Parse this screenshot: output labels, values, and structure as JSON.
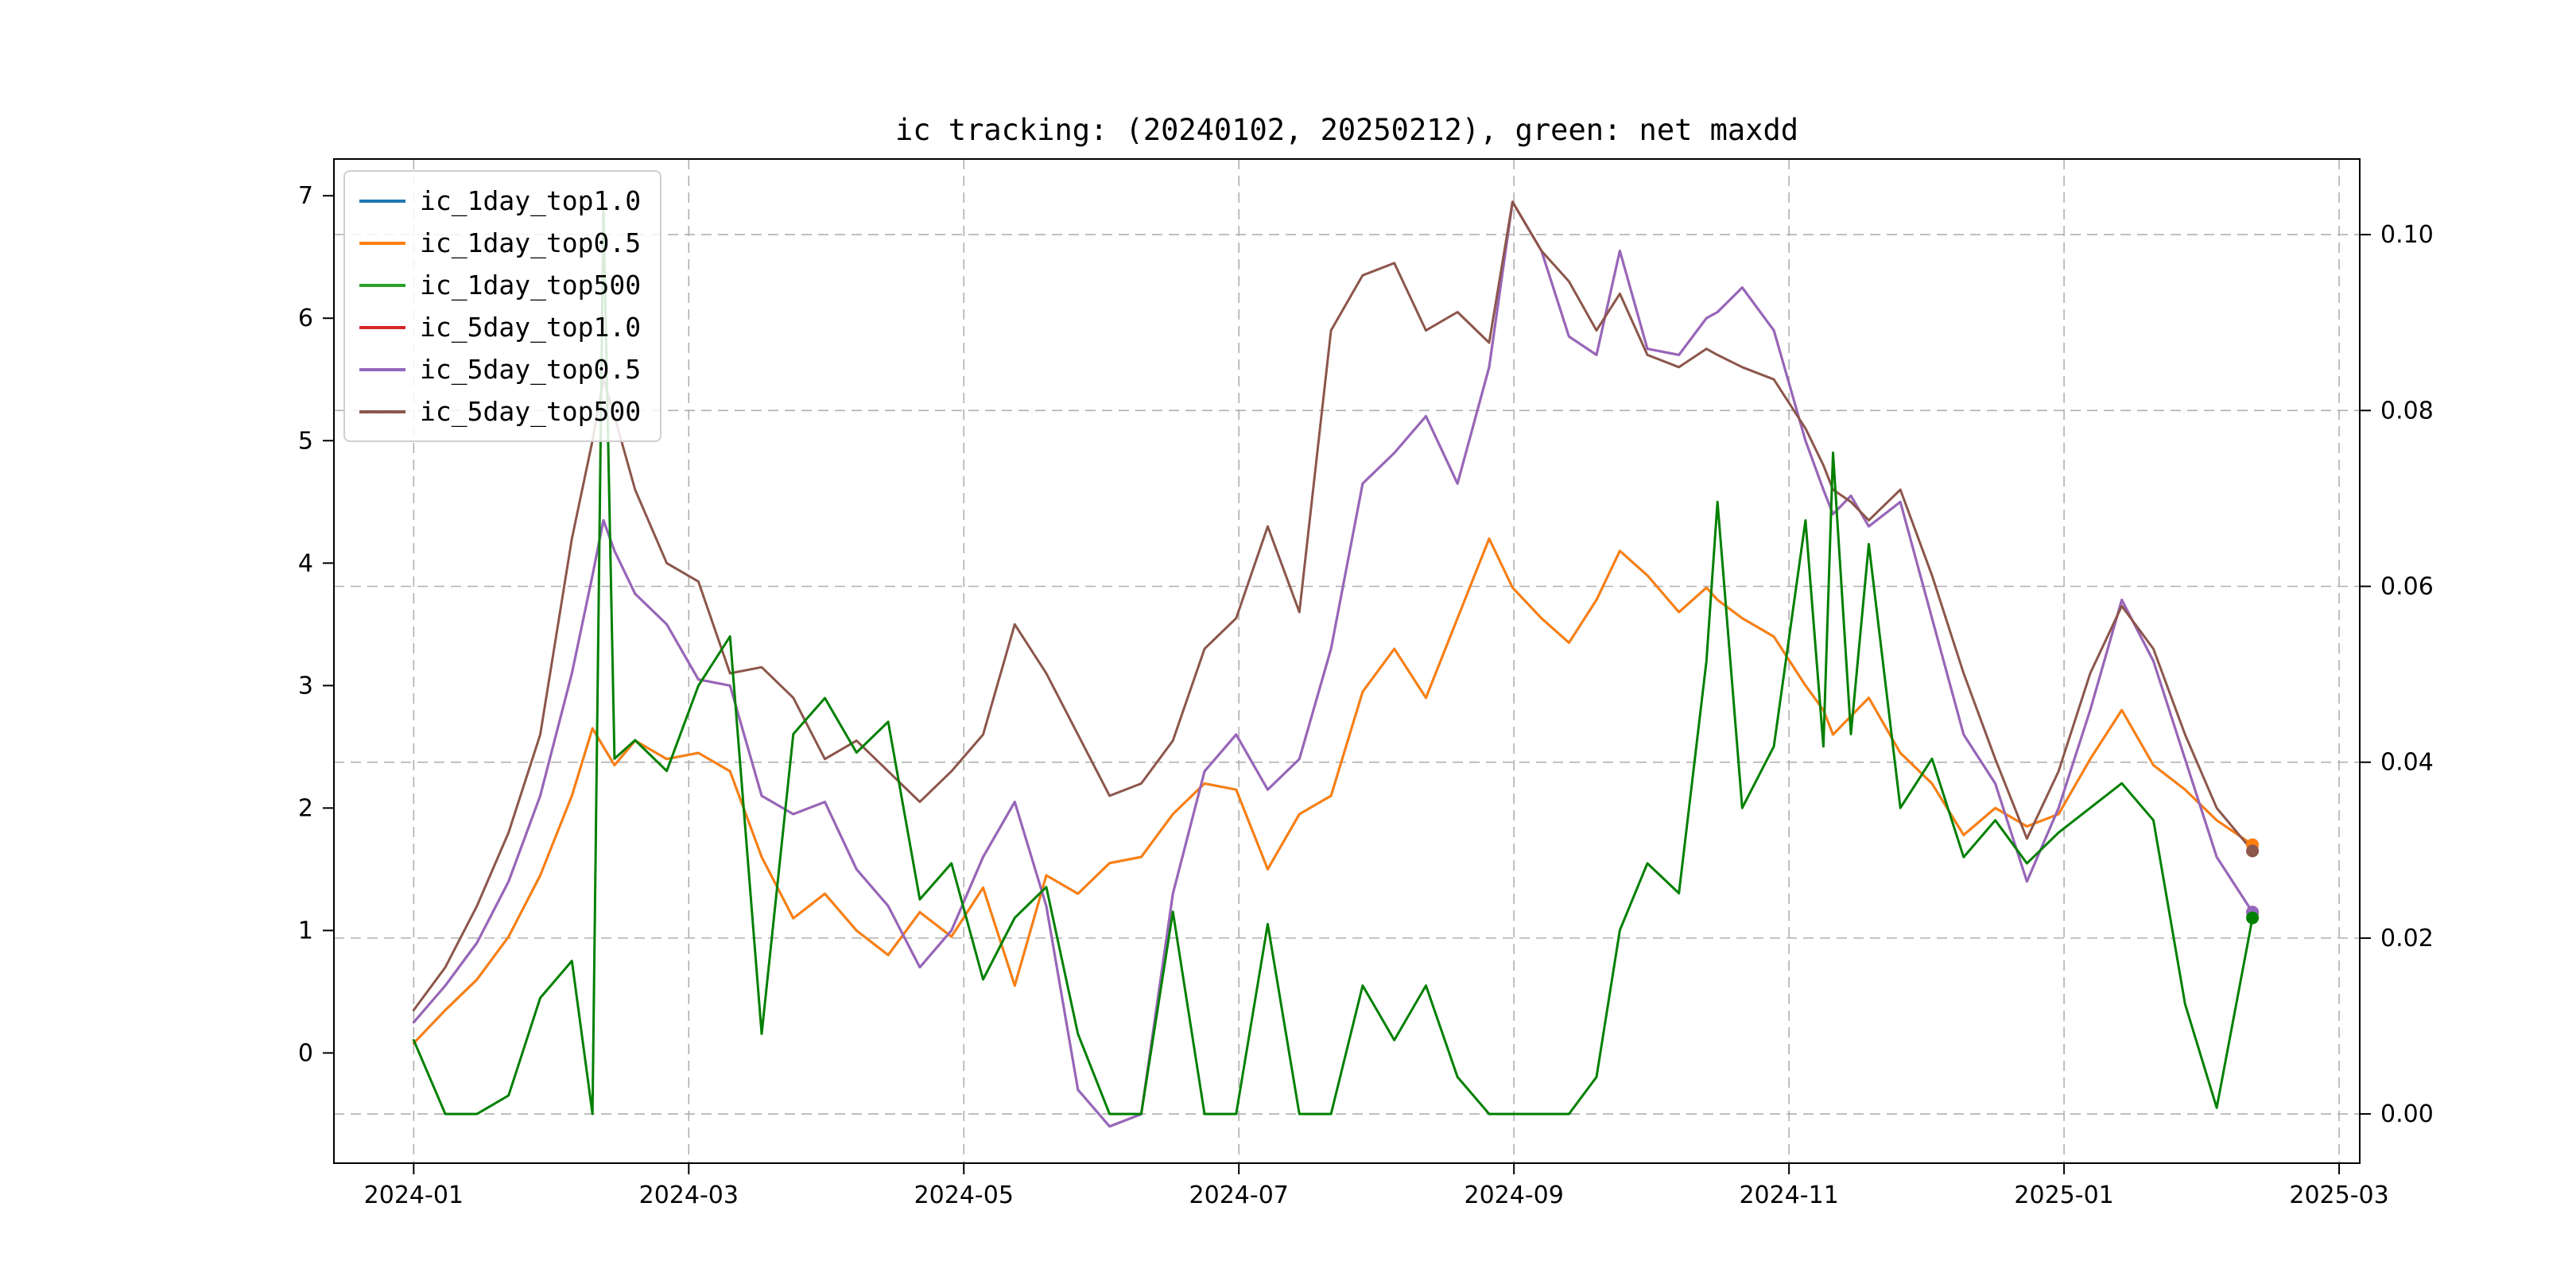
{
  "chart_data": {
    "type": "line",
    "title": "ic tracking: (20240102, 20250212), green: net maxdd",
    "x_unit": "months since 2024-01-01",
    "xlim": [
      -0.58,
      14.15
    ],
    "left_ylim": [
      -0.9,
      7.3
    ],
    "right_ylim": [
      -0.0056,
      0.1086
    ],
    "x_ticks": [
      {
        "label": "2024-01",
        "v": 0
      },
      {
        "label": "2024-03",
        "v": 2
      },
      {
        "label": "2024-05",
        "v": 4
      },
      {
        "label": "2024-07",
        "v": 6
      },
      {
        "label": "2024-09",
        "v": 8
      },
      {
        "label": "2024-11",
        "v": 10
      },
      {
        "label": "2025-01",
        "v": 12
      },
      {
        "label": "2025-03",
        "v": 14
      }
    ],
    "left_ticks": [
      {
        "label": "0",
        "v": 0
      },
      {
        "label": "1",
        "v": 1
      },
      {
        "label": "2",
        "v": 2
      },
      {
        "label": "3",
        "v": 3
      },
      {
        "label": "4",
        "v": 4
      },
      {
        "label": "5",
        "v": 5
      },
      {
        "label": "6",
        "v": 6
      },
      {
        "label": "7",
        "v": 7
      }
    ],
    "right_ticks": [
      {
        "label": "0.00",
        "v": 0.0
      },
      {
        "label": "0.02",
        "v": 0.02
      },
      {
        "label": "0.04",
        "v": 0.04
      },
      {
        "label": "0.06",
        "v": 0.06
      },
      {
        "label": "0.08",
        "v": 0.08
      },
      {
        "label": "0.10",
        "v": 0.1
      }
    ],
    "grid": {
      "style": "dashed",
      "color": "#b0b0b0"
    },
    "x": [
      0.0,
      0.23,
      0.46,
      0.69,
      0.92,
      1.15,
      1.3,
      1.38,
      1.46,
      1.61,
      1.84,
      2.07,
      2.3,
      2.53,
      2.76,
      2.99,
      3.22,
      3.45,
      3.68,
      3.91,
      4.14,
      4.37,
      4.6,
      4.83,
      5.06,
      5.29,
      5.52,
      5.75,
      5.98,
      6.21,
      6.44,
      6.67,
      6.9,
      7.13,
      7.36,
      7.59,
      7.82,
      7.99,
      8.2,
      8.4,
      8.6,
      8.77,
      8.97,
      9.2,
      9.4,
      9.48,
      9.66,
      9.89,
      10.12,
      10.25,
      10.32,
      10.45,
      10.58,
      10.81,
      11.04,
      11.27,
      11.5,
      11.73,
      11.96,
      12.19,
      12.42,
      12.65,
      12.88,
      13.11,
      13.37
    ],
    "series": [
      {
        "name": "ic_1day_top1.0",
        "color": "#1f77b4",
        "axis": "left",
        "values": [
          0.08,
          0.35,
          0.6,
          0.95,
          1.45,
          2.1,
          2.65,
          2.5,
          2.35,
          2.55,
          2.4,
          2.45,
          2.3,
          1.6,
          1.1,
          1.3,
          1.0,
          0.8,
          1.15,
          0.95,
          1.35,
          0.55,
          1.45,
          1.3,
          1.55,
          1.6,
          1.95,
          2.2,
          2.15,
          1.5,
          1.95,
          2.1,
          2.95,
          3.3,
          2.9,
          3.55,
          4.2,
          3.8,
          3.55,
          3.35,
          3.7,
          4.1,
          3.9,
          3.6,
          3.8,
          3.7,
          3.55,
          3.4,
          3.0,
          2.8,
          2.6,
          2.75,
          2.9,
          2.45,
          2.2,
          1.78,
          2.0,
          1.85,
          1.95,
          2.4,
          2.8,
          2.35,
          2.15,
          1.9,
          1.7
        ]
      },
      {
        "name": "ic_1day_top0.5",
        "color": "#ff7f0e",
        "axis": "left",
        "values": [
          0.08,
          0.35,
          0.6,
          0.95,
          1.45,
          2.1,
          2.65,
          2.5,
          2.35,
          2.55,
          2.4,
          2.45,
          2.3,
          1.6,
          1.1,
          1.3,
          1.0,
          0.8,
          1.15,
          0.95,
          1.35,
          0.55,
          1.45,
          1.3,
          1.55,
          1.6,
          1.95,
          2.2,
          2.15,
          1.5,
          1.95,
          2.1,
          2.95,
          3.3,
          2.9,
          3.55,
          4.2,
          3.8,
          3.55,
          3.35,
          3.7,
          4.1,
          3.9,
          3.6,
          3.8,
          3.7,
          3.55,
          3.4,
          3.0,
          2.8,
          2.6,
          2.75,
          2.9,
          2.45,
          2.2,
          1.78,
          2.0,
          1.85,
          1.95,
          2.4,
          2.8,
          2.35,
          2.15,
          1.9,
          1.7
        ]
      },
      {
        "name": "ic_1day_top500",
        "color": "#008000",
        "axis": "right",
        "values": [
          0.0084,
          0.0,
          0.0,
          0.0021,
          0.0132,
          0.0174,
          0.0,
          0.1031,
          0.0404,
          0.0425,
          0.039,
          0.0487,
          0.0543,
          0.0091,
          0.0432,
          0.0473,
          0.0411,
          0.0446,
          0.0244,
          0.0285,
          0.0153,
          0.0223,
          0.0258,
          0.0091,
          0.0,
          0.0,
          0.023,
          0.0,
          0.0,
          0.0216,
          0.0,
          0.0,
          0.0146,
          0.0084,
          0.0146,
          0.0042,
          0.0,
          0.0,
          0.0,
          0.0,
          0.0042,
          0.0209,
          0.0285,
          0.0251,
          0.0515,
          0.0696,
          0.0348,
          0.0418,
          0.0675,
          0.0418,
          0.0752,
          0.0432,
          0.0648,
          0.0348,
          0.0404,
          0.0292,
          0.0334,
          0.0285,
          0.032,
          0.0348,
          0.0376,
          0.0334,
          0.0125,
          0.0007,
          0.0223
        ]
      },
      {
        "name": "ic_5day_top1.0",
        "color": "#d62728",
        "axis": "left",
        "values": [
          0.25,
          0.55,
          0.9,
          1.4,
          2.1,
          3.1,
          3.9,
          4.35,
          4.1,
          3.75,
          3.5,
          3.05,
          3.0,
          2.1,
          1.95,
          2.05,
          1.5,
          1.2,
          0.7,
          1.0,
          1.6,
          2.05,
          1.2,
          -0.3,
          -0.6,
          -0.5,
          1.3,
          2.3,
          2.6,
          2.15,
          2.4,
          3.3,
          4.65,
          4.9,
          5.2,
          4.65,
          5.6,
          6.95,
          6.55,
          5.85,
          5.7,
          6.55,
          5.75,
          5.7,
          6.0,
          6.05,
          6.25,
          5.9,
          5.0,
          4.6,
          4.4,
          4.55,
          4.3,
          4.5,
          3.55,
          2.6,
          2.2,
          1.4,
          2.0,
          2.8,
          3.7,
          3.2,
          2.4,
          1.6,
          1.15
        ]
      },
      {
        "name": "ic_5day_top0.5",
        "color": "#9467bd",
        "axis": "left",
        "values": [
          0.25,
          0.55,
          0.9,
          1.4,
          2.1,
          3.1,
          3.9,
          4.35,
          4.1,
          3.75,
          3.5,
          3.05,
          3.0,
          2.1,
          1.95,
          2.05,
          1.5,
          1.2,
          0.7,
          1.0,
          1.6,
          2.05,
          1.2,
          -0.3,
          -0.6,
          -0.5,
          1.3,
          2.3,
          2.6,
          2.15,
          2.4,
          3.3,
          4.65,
          4.9,
          5.2,
          4.65,
          5.6,
          6.95,
          6.55,
          5.85,
          5.7,
          6.55,
          5.75,
          5.7,
          6.0,
          6.05,
          6.25,
          5.9,
          5.0,
          4.6,
          4.4,
          4.55,
          4.3,
          4.5,
          3.55,
          2.6,
          2.2,
          1.4,
          2.0,
          2.8,
          3.7,
          3.2,
          2.4,
          1.6,
          1.15
        ]
      },
      {
        "name": "ic_5day_top500",
        "color": "#8c564b",
        "axis": "left",
        "values": [
          0.35,
          0.7,
          1.2,
          1.8,
          2.6,
          4.2,
          5.0,
          5.5,
          5.2,
          4.6,
          4.0,
          3.85,
          3.1,
          3.15,
          2.9,
          2.4,
          2.55,
          2.3,
          2.05,
          2.3,
          2.6,
          3.5,
          3.1,
          2.6,
          2.1,
          2.2,
          2.55,
          3.3,
          3.55,
          4.3,
          3.6,
          5.9,
          6.35,
          6.45,
          5.9,
          6.05,
          5.8,
          6.95,
          6.55,
          6.3,
          5.9,
          6.2,
          5.7,
          5.6,
          5.75,
          5.7,
          5.6,
          5.5,
          5.1,
          4.8,
          4.6,
          4.5,
          4.35,
          4.6,
          3.9,
          3.1,
          2.4,
          1.75,
          2.3,
          3.1,
          3.65,
          3.3,
          2.6,
          2.0,
          1.65
        ]
      }
    ],
    "draw_order": [
      0,
      1,
      3,
      4,
      5,
      2
    ],
    "end_markers": true,
    "legend": {
      "position": "upper-left",
      "entries": [
        {
          "label": "ic_1day_top1.0",
          "color": "#1f77b4"
        },
        {
          "label": "ic_1day_top0.5",
          "color": "#ff7f0e"
        },
        {
          "label": "ic_1day_top500",
          "color": "#2ca02c"
        },
        {
          "label": "ic_5day_top1.0",
          "color": "#d62728"
        },
        {
          "label": "ic_5day_top0.5",
          "color": "#9467bd"
        },
        {
          "label": "ic_5day_top500",
          "color": "#8c564b"
        }
      ]
    }
  }
}
